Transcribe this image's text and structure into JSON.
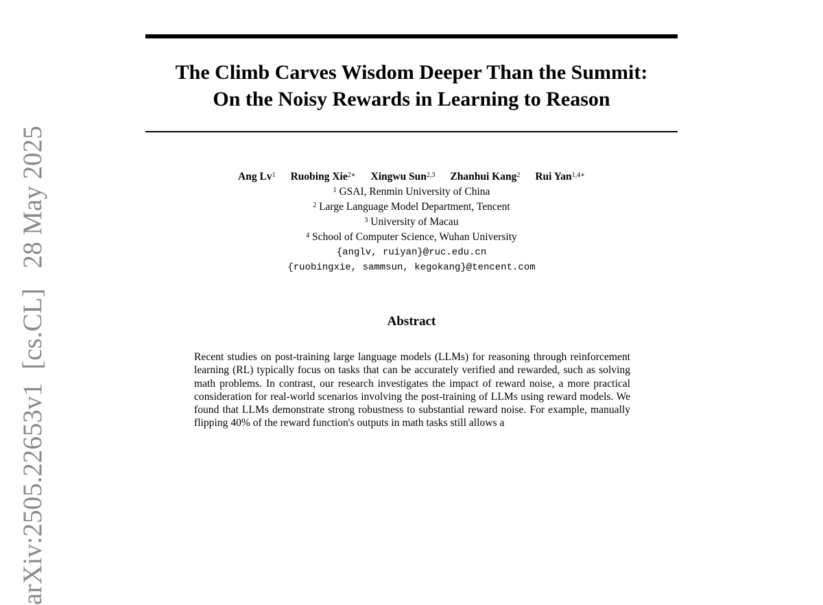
{
  "sidebar_stamp": "arXiv:2505.22653v1  [cs.CL]   28 May 2025",
  "title_lines": [
    "The Climb Carves Wisdom Deeper Than the Summit:",
    "On the Noisy Rewards in Learning to Reason"
  ],
  "authors": [
    {
      "name": "Ang Lv",
      "aff": "1"
    },
    {
      "name": "Ruobing Xie",
      "aff": "2∗"
    },
    {
      "name": "Xingwu Sun",
      "aff": "2,3"
    },
    {
      "name": "Zhanhui Kang",
      "aff": "2"
    },
    {
      "name": "Rui Yan",
      "aff": "1,4∗"
    }
  ],
  "affiliations": [
    {
      "num": "1",
      "text": "GSAI, Renmin University of China"
    },
    {
      "num": "2",
      "text": "Large Language Model Department, Tencent"
    },
    {
      "num": "3",
      "text": "University of Macau"
    },
    {
      "num": "4",
      "text": "School of Computer Science, Wuhan University"
    }
  ],
  "emails": [
    "{anglv, ruiyan}@ruc.edu.cn",
    "{ruobingxie, sammsun, kegokang}@tencent.com"
  ],
  "abstract_heading": "Abstract",
  "abstract_text": "Recent studies on post-training large language models (LLMs) for reasoning through reinforcement learning (RL) typically focus on tasks that can be accurately verified and rewarded, such as solving math problems. In contrast, our research in­vestigates the impact of reward noise, a more practical consideration for real-world scenarios involving the post-training of LLMs using reward models. We found that LLMs demonstrate strong robustness to substantial reward noise.  For example, manually flipping 40% of the reward function's outputs in math tasks still allows a"
}
